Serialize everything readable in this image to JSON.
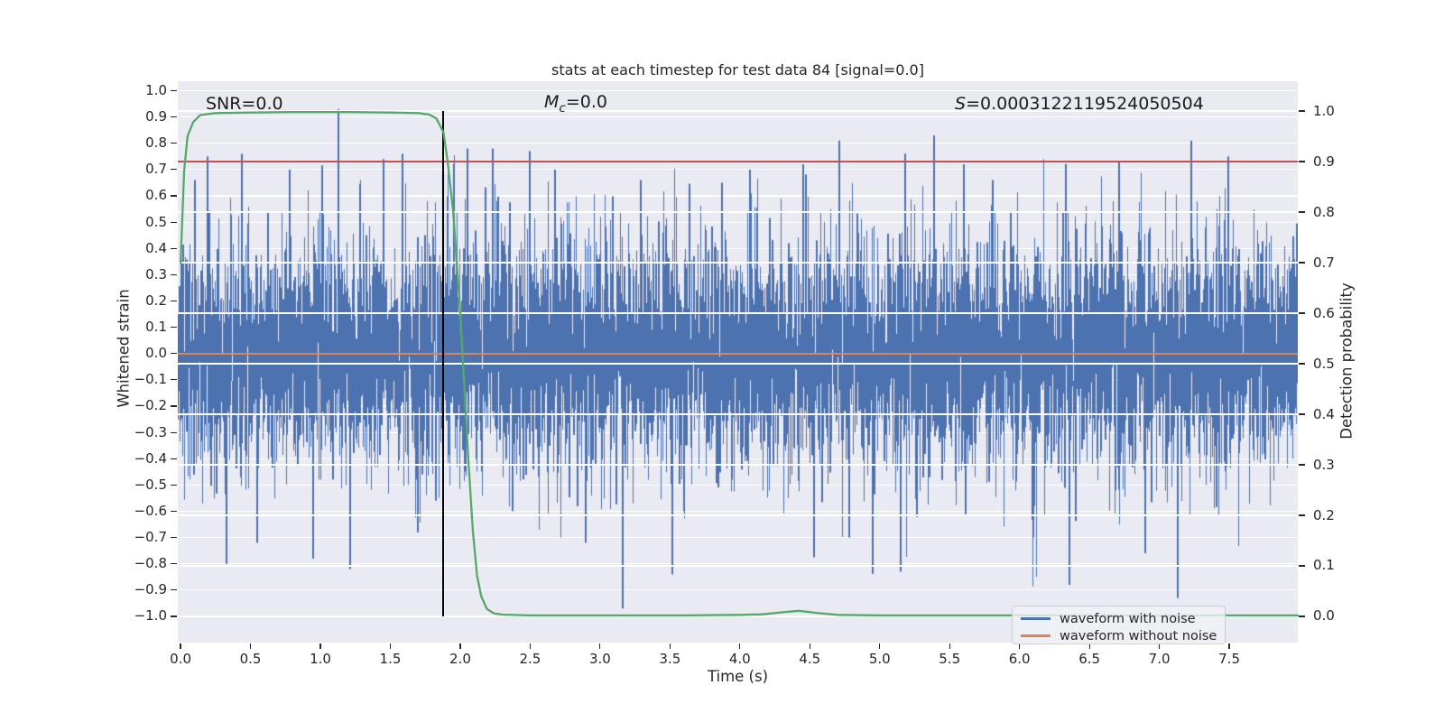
{
  "chart_data": {
    "type": "line",
    "title": "stats at each timestep for test data 84 [signal=0.0]",
    "xlabel": "Time (s)",
    "ylabel_left": "Whitened strain",
    "ylabel_right": "Detection probability",
    "xlim": [
      -0.02,
      7.99
    ],
    "ylim_left": [
      -1.0996,
      1.036
    ],
    "ylim_right": [
      -0.0518,
      1.059
    ],
    "grid": true,
    "colors": {
      "background": "#eaeaf2",
      "grid": "#ffffff",
      "noise_waveform": "#4c72b0",
      "clean_waveform": "#dd8452",
      "probability": "#55a868",
      "threshold": "#c44e52",
      "event_marker": "#000000",
      "text": "#262626"
    },
    "x_ticks": {
      "values": [
        0.0,
        0.5,
        1.0,
        1.5,
        2.0,
        2.5,
        3.0,
        3.5,
        4.0,
        4.5,
        5.0,
        5.5,
        6.0,
        6.5,
        7.0,
        7.5
      ],
      "labels": [
        "0.0",
        "0.5",
        "1.0",
        "1.5",
        "2.0",
        "2.5",
        "3.0",
        "3.5",
        "4.0",
        "4.5",
        "5.0",
        "5.5",
        "6.0",
        "6.5",
        "7.0",
        "7.5"
      ]
    },
    "y_ticks_left": {
      "values": [
        1.0,
        0.9,
        0.8,
        0.7,
        0.6,
        0.5,
        0.4,
        0.3,
        0.2,
        0.1,
        0.0,
        -0.1,
        -0.2,
        -0.3,
        -0.4,
        -0.5,
        -0.6,
        -0.7,
        -0.8,
        -0.9,
        -1.0
      ],
      "labels": [
        "1.0",
        "0.9",
        "0.8",
        "0.7",
        "0.6",
        "0.5",
        "0.4",
        "0.3",
        "0.2",
        "0.1",
        "0.0",
        "−0.1",
        "−0.2",
        "−0.3",
        "−0.4",
        "−0.5",
        "−0.6",
        "−0.7",
        "−0.8",
        "−0.9",
        "−1.0"
      ]
    },
    "y_ticks_right": {
      "values": [
        1.0,
        0.9,
        0.8,
        0.7,
        0.6,
        0.5,
        0.4,
        0.3,
        0.2,
        0.1,
        0.0
      ],
      "labels": [
        "1.0",
        "0.9",
        "0.8",
        "0.7",
        "0.6",
        "0.5",
        "0.4",
        "0.3",
        "0.2",
        "0.1",
        "0.0"
      ]
    },
    "annotations": {
      "snr": {
        "text": "SNR=0.0"
      },
      "mc": {
        "var": "M",
        "sub": "c",
        "value": "=0.0"
      },
      "s": {
        "var": "S",
        "value": "=0.0003122119524050504"
      }
    },
    "series": [
      {
        "name": "waveform with noise",
        "axis": "left",
        "style": "gaussian-noise",
        "color": "#4c72b0",
        "mean": 0.0,
        "std": 0.225,
        "samples_per_column": 6,
        "clip": [
          -1.0,
          0.94
        ],
        "extremes": [
          [
            0.1,
            0.66
          ],
          [
            0.19,
            0.75
          ],
          [
            0.33,
            -0.8
          ],
          [
            0.44,
            0.76
          ],
          [
            0.55,
            -0.72
          ],
          [
            0.78,
            0.7
          ],
          [
            0.95,
            -0.78
          ],
          [
            1.13,
            0.93
          ],
          [
            1.21,
            -0.82
          ],
          [
            1.45,
            0.74
          ],
          [
            1.59,
            0.76
          ],
          [
            1.7,
            -0.68
          ],
          [
            1.88,
            0.68
          ],
          [
            2.05,
            0.78
          ],
          [
            2.23,
            0.78
          ],
          [
            2.5,
            0.77
          ],
          [
            2.68,
            0.7
          ],
          [
            2.9,
            -0.72
          ],
          [
            3.16,
            -0.97
          ],
          [
            3.29,
            0.66
          ],
          [
            3.52,
            -0.84
          ],
          [
            3.87,
            0.65
          ],
          [
            4.07,
            0.7
          ],
          [
            4.45,
            0.72
          ],
          [
            4.71,
            0.81
          ],
          [
            4.78,
            -0.7
          ],
          [
            5.15,
            -0.83
          ],
          [
            5.18,
            0.76
          ],
          [
            5.39,
            0.83
          ],
          [
            5.6,
            0.72
          ],
          [
            5.81,
            0.66
          ],
          [
            6.1,
            -0.7
          ],
          [
            6.36,
            -0.88
          ],
          [
            6.71,
            0.73
          ],
          [
            6.9,
            -0.76
          ],
          [
            7.13,
            -0.93
          ],
          [
            7.23,
            0.81
          ],
          [
            7.49,
            0.75
          ]
        ]
      },
      {
        "name": "waveform without noise",
        "axis": "left",
        "style": "constant",
        "color": "#dd8452",
        "value": 0.0
      },
      {
        "name": "detection probability",
        "axis": "right",
        "style": "line",
        "color": "#55a868",
        "points": [
          [
            0.0,
            0.7
          ],
          [
            0.025,
            0.88
          ],
          [
            0.05,
            0.95
          ],
          [
            0.09,
            0.978
          ],
          [
            0.14,
            0.992
          ],
          [
            0.25,
            0.996
          ],
          [
            0.5,
            0.997
          ],
          [
            0.8,
            0.998
          ],
          [
            1.2,
            0.998
          ],
          [
            1.5,
            0.997
          ],
          [
            1.7,
            0.996
          ],
          [
            1.78,
            0.993
          ],
          [
            1.83,
            0.985
          ],
          [
            1.88,
            0.958
          ],
          [
            1.91,
            0.9
          ],
          [
            1.95,
            0.8
          ],
          [
            2.0,
            0.6
          ],
          [
            2.03,
            0.45
          ],
          [
            2.06,
            0.3
          ],
          [
            2.09,
            0.17
          ],
          [
            2.12,
            0.08
          ],
          [
            2.15,
            0.04
          ],
          [
            2.19,
            0.015
          ],
          [
            2.24,
            0.006
          ],
          [
            2.3,
            0.0035
          ],
          [
            2.5,
            0.002
          ],
          [
            3.0,
            0.002
          ],
          [
            3.6,
            0.002
          ],
          [
            4.0,
            0.003
          ],
          [
            4.15,
            0.004
          ],
          [
            4.3,
            0.008
          ],
          [
            4.42,
            0.011
          ],
          [
            4.55,
            0.007
          ],
          [
            4.7,
            0.003
          ],
          [
            5.0,
            0.002
          ],
          [
            5.5,
            0.002
          ],
          [
            6.0,
            0.002
          ],
          [
            6.5,
            0.002
          ],
          [
            7.0,
            0.002
          ],
          [
            7.5,
            0.002
          ],
          [
            7.99,
            0.002
          ]
        ]
      },
      {
        "name": "detection threshold",
        "axis": "right",
        "style": "hline",
        "color": "#c44e52",
        "value": 0.9
      },
      {
        "name": "event time marker",
        "axis": "right",
        "style": "vline",
        "color": "#000000",
        "x": 1.88,
        "span": [
          0.0,
          1.0
        ]
      }
    ],
    "legend": {
      "position": "lower right",
      "entries": [
        {
          "label": "waveform with noise",
          "color": "#4c72b0"
        },
        {
          "label": "waveform without noise",
          "color": "#dd8452"
        }
      ]
    }
  }
}
